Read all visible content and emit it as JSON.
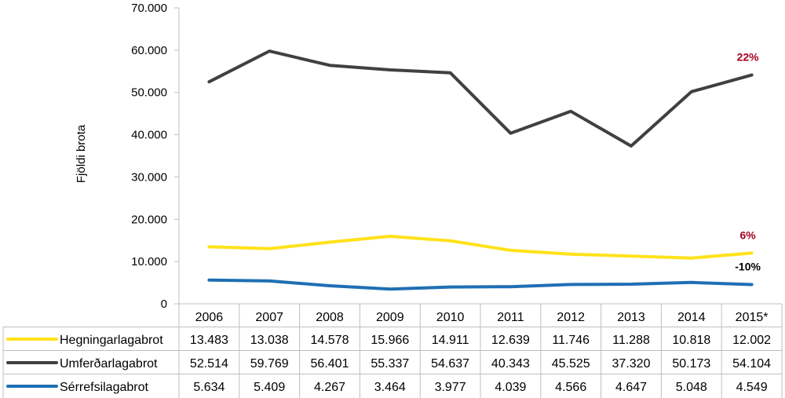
{
  "chart_data": {
    "type": "line",
    "title": "",
    "xlabel": "",
    "ylabel": "Fjöldi brota",
    "ylim": [
      0,
      70000
    ],
    "y_ticks": [
      "0",
      "10.000",
      "20.000",
      "30.000",
      "40.000",
      "50.000",
      "60.000",
      "70.000"
    ],
    "y_tick_values": [
      0,
      10000,
      20000,
      30000,
      40000,
      50000,
      60000,
      70000
    ],
    "categories": [
      "2006",
      "2007",
      "2008",
      "2009",
      "2010",
      "2011",
      "2012",
      "2013",
      "2014",
      "2015*"
    ],
    "grid": false,
    "legend_placement": "data-table-left",
    "series": [
      {
        "name": "Hegningarlagabrot",
        "color": "#FFE21A",
        "values": [
          13483,
          13038,
          14578,
          15966,
          14911,
          12639,
          11746,
          11288,
          10818,
          12002
        ],
        "labels": [
          "13.483",
          "13.038",
          "14.578",
          "15.966",
          "14.911",
          "12.639",
          "11.746",
          "11.288",
          "10.818",
          "12.002"
        ],
        "end_annotation": "6%",
        "annotation_color": "#A50021"
      },
      {
        "name": "Umferðarlagabrot",
        "color": "#404040",
        "values": [
          52514,
          59769,
          56401,
          55337,
          54637,
          40343,
          45525,
          37320,
          50173,
          54104
        ],
        "labels": [
          "52.514",
          "59.769",
          "56.401",
          "55.337",
          "54.637",
          "40.343",
          "45.525",
          "37.320",
          "50.173",
          "54.104"
        ],
        "end_annotation": "22%",
        "annotation_color": "#A50021"
      },
      {
        "name": "Sérrefsilagabrot",
        "color": "#1F6FB4",
        "values": [
          5634,
          5409,
          4267,
          3464,
          3977,
          4039,
          4566,
          4647,
          5048,
          4549
        ],
        "labels": [
          "5.634",
          "5.409",
          "4.267",
          "3.464",
          "3.977",
          "4.039",
          "4.566",
          "4.647",
          "5.048",
          "4.549"
        ],
        "end_annotation": "-10%",
        "annotation_color": "#000000"
      }
    ]
  }
}
